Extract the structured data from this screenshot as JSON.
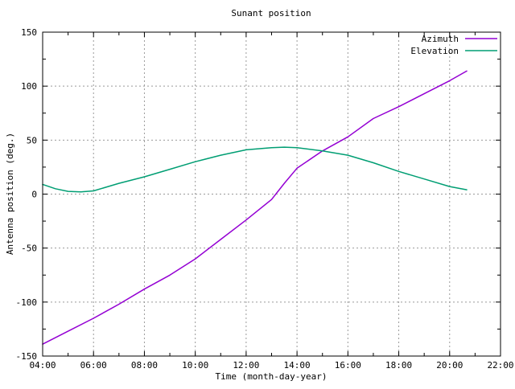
{
  "window": {
    "background": "#ffffff"
  },
  "chart_data": {
    "type": "line",
    "title": "Sunant position",
    "xlabel": "Time (month-day-year)",
    "ylabel": "Antenna position (deg.)",
    "grid": true,
    "legend_position": "top-right-inside",
    "xlim_hours": [
      4,
      22
    ],
    "ylim": [
      -150,
      150
    ],
    "x_ticks": [
      "04:00",
      "06:00",
      "08:00",
      "10:00",
      "12:00",
      "14:00",
      "16:00",
      "18:00",
      "20:00",
      "22:00"
    ],
    "x_tick_hours": [
      4,
      6,
      8,
      10,
      12,
      14,
      16,
      18,
      20,
      22
    ],
    "x_minor_hours": [
      5,
      7,
      9,
      11,
      13,
      15,
      17,
      19,
      21
    ],
    "y_ticks": [
      -150,
      -100,
      -50,
      0,
      50,
      100,
      150
    ],
    "y_minor": [
      -125,
      -75,
      -25,
      25,
      75,
      125
    ],
    "colors": {
      "grid": "#9a9a9a",
      "border": "#000000"
    },
    "series": [
      {
        "name": "Azimuth",
        "color": "#9400d3",
        "x": [
          4,
          5,
          6,
          7,
          8,
          9,
          10,
          11,
          12,
          13,
          13.5,
          14,
          15,
          16,
          17,
          18,
          19,
          20,
          20.67
        ],
        "y": [
          -139,
          -127,
          -115,
          -102,
          -88,
          -75,
          -60,
          -42,
          -24,
          -5,
          10,
          24,
          40,
          53,
          70,
          81,
          93,
          105,
          114
        ]
      },
      {
        "name": "Elevation",
        "color": "#009e73",
        "x": [
          4,
          4.5,
          5,
          5.5,
          6,
          7,
          8,
          9,
          10,
          11,
          12,
          13,
          13.5,
          14,
          15,
          16,
          17,
          18,
          19,
          20,
          20.67
        ],
        "y": [
          9,
          5,
          2.5,
          2,
          3,
          10,
          16,
          23,
          30,
          36,
          41,
          43,
          43.5,
          43,
          40,
          36,
          29,
          21,
          14,
          7,
          4
        ]
      }
    ]
  }
}
